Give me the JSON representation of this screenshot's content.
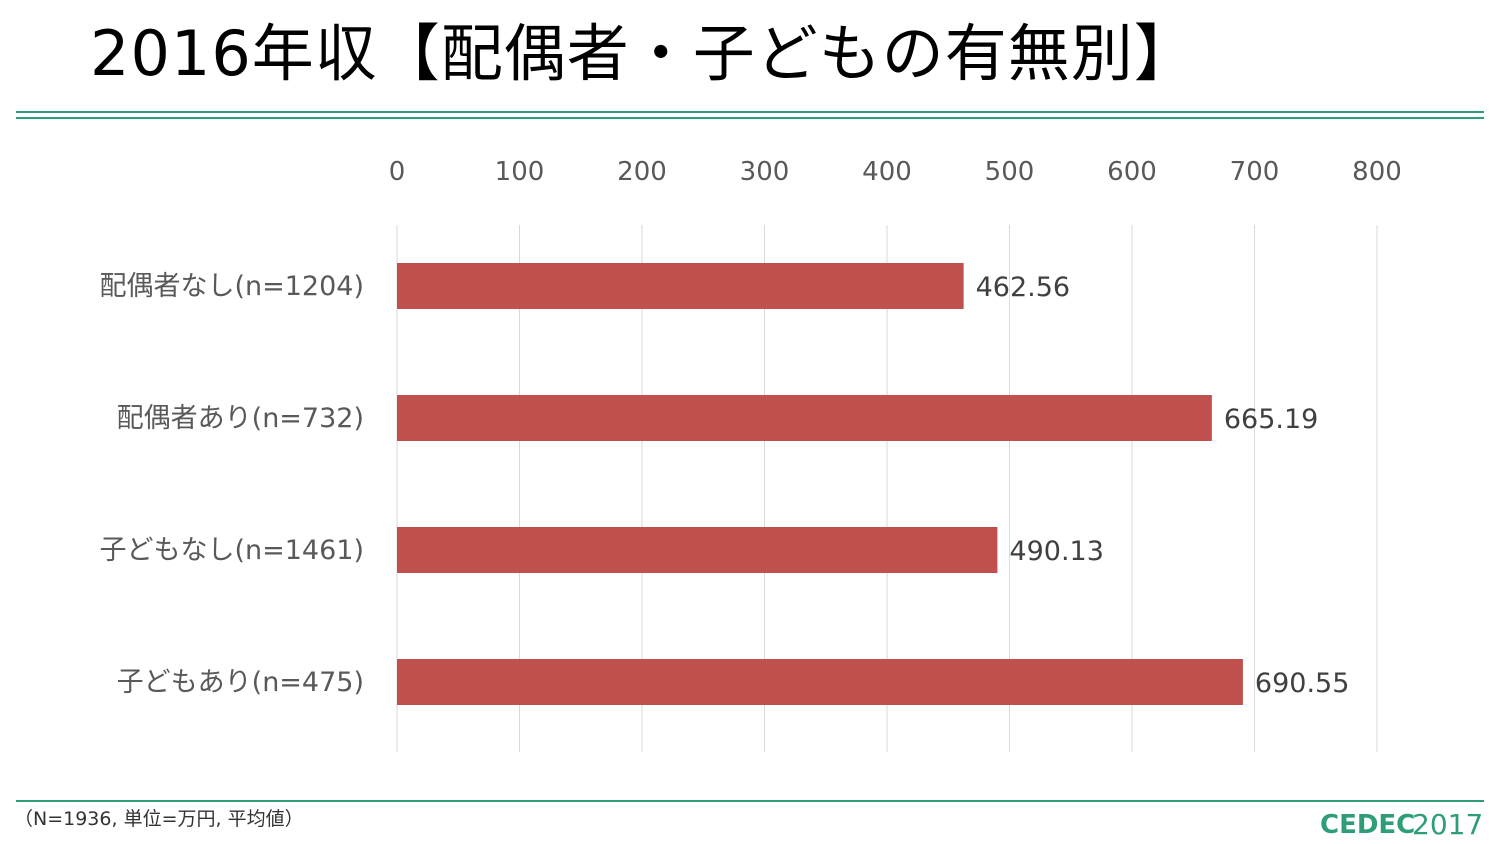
{
  "title": "2016年収【配偶者・子どもの有無別】",
  "footnote": "（N=1936, 単位=万円, 平均値）",
  "logo": {
    "brand": "CEDEC",
    "year": "2017",
    "color": "#2e9e78"
  },
  "chart_data": {
    "type": "bar",
    "orientation": "horizontal",
    "categories": [
      "配偶者なし(n=1204)",
      "配偶者あり(n=732)",
      "子どもなし(n=1461)",
      "子どもあり(n=475)"
    ],
    "values": [
      462.56,
      665.19,
      490.13,
      690.55
    ],
    "value_labels": [
      "462.56",
      "665.19",
      "490.13",
      "690.55"
    ],
    "xlim": [
      0,
      800
    ],
    "ticks": [
      0,
      100,
      200,
      300,
      400,
      500,
      600,
      700,
      800
    ],
    "tick_labels": [
      "0",
      "100",
      "200",
      "300",
      "400",
      "500",
      "600",
      "700",
      "800"
    ],
    "axis_position": "top",
    "grid": true,
    "bar_color": "#c0504d"
  }
}
